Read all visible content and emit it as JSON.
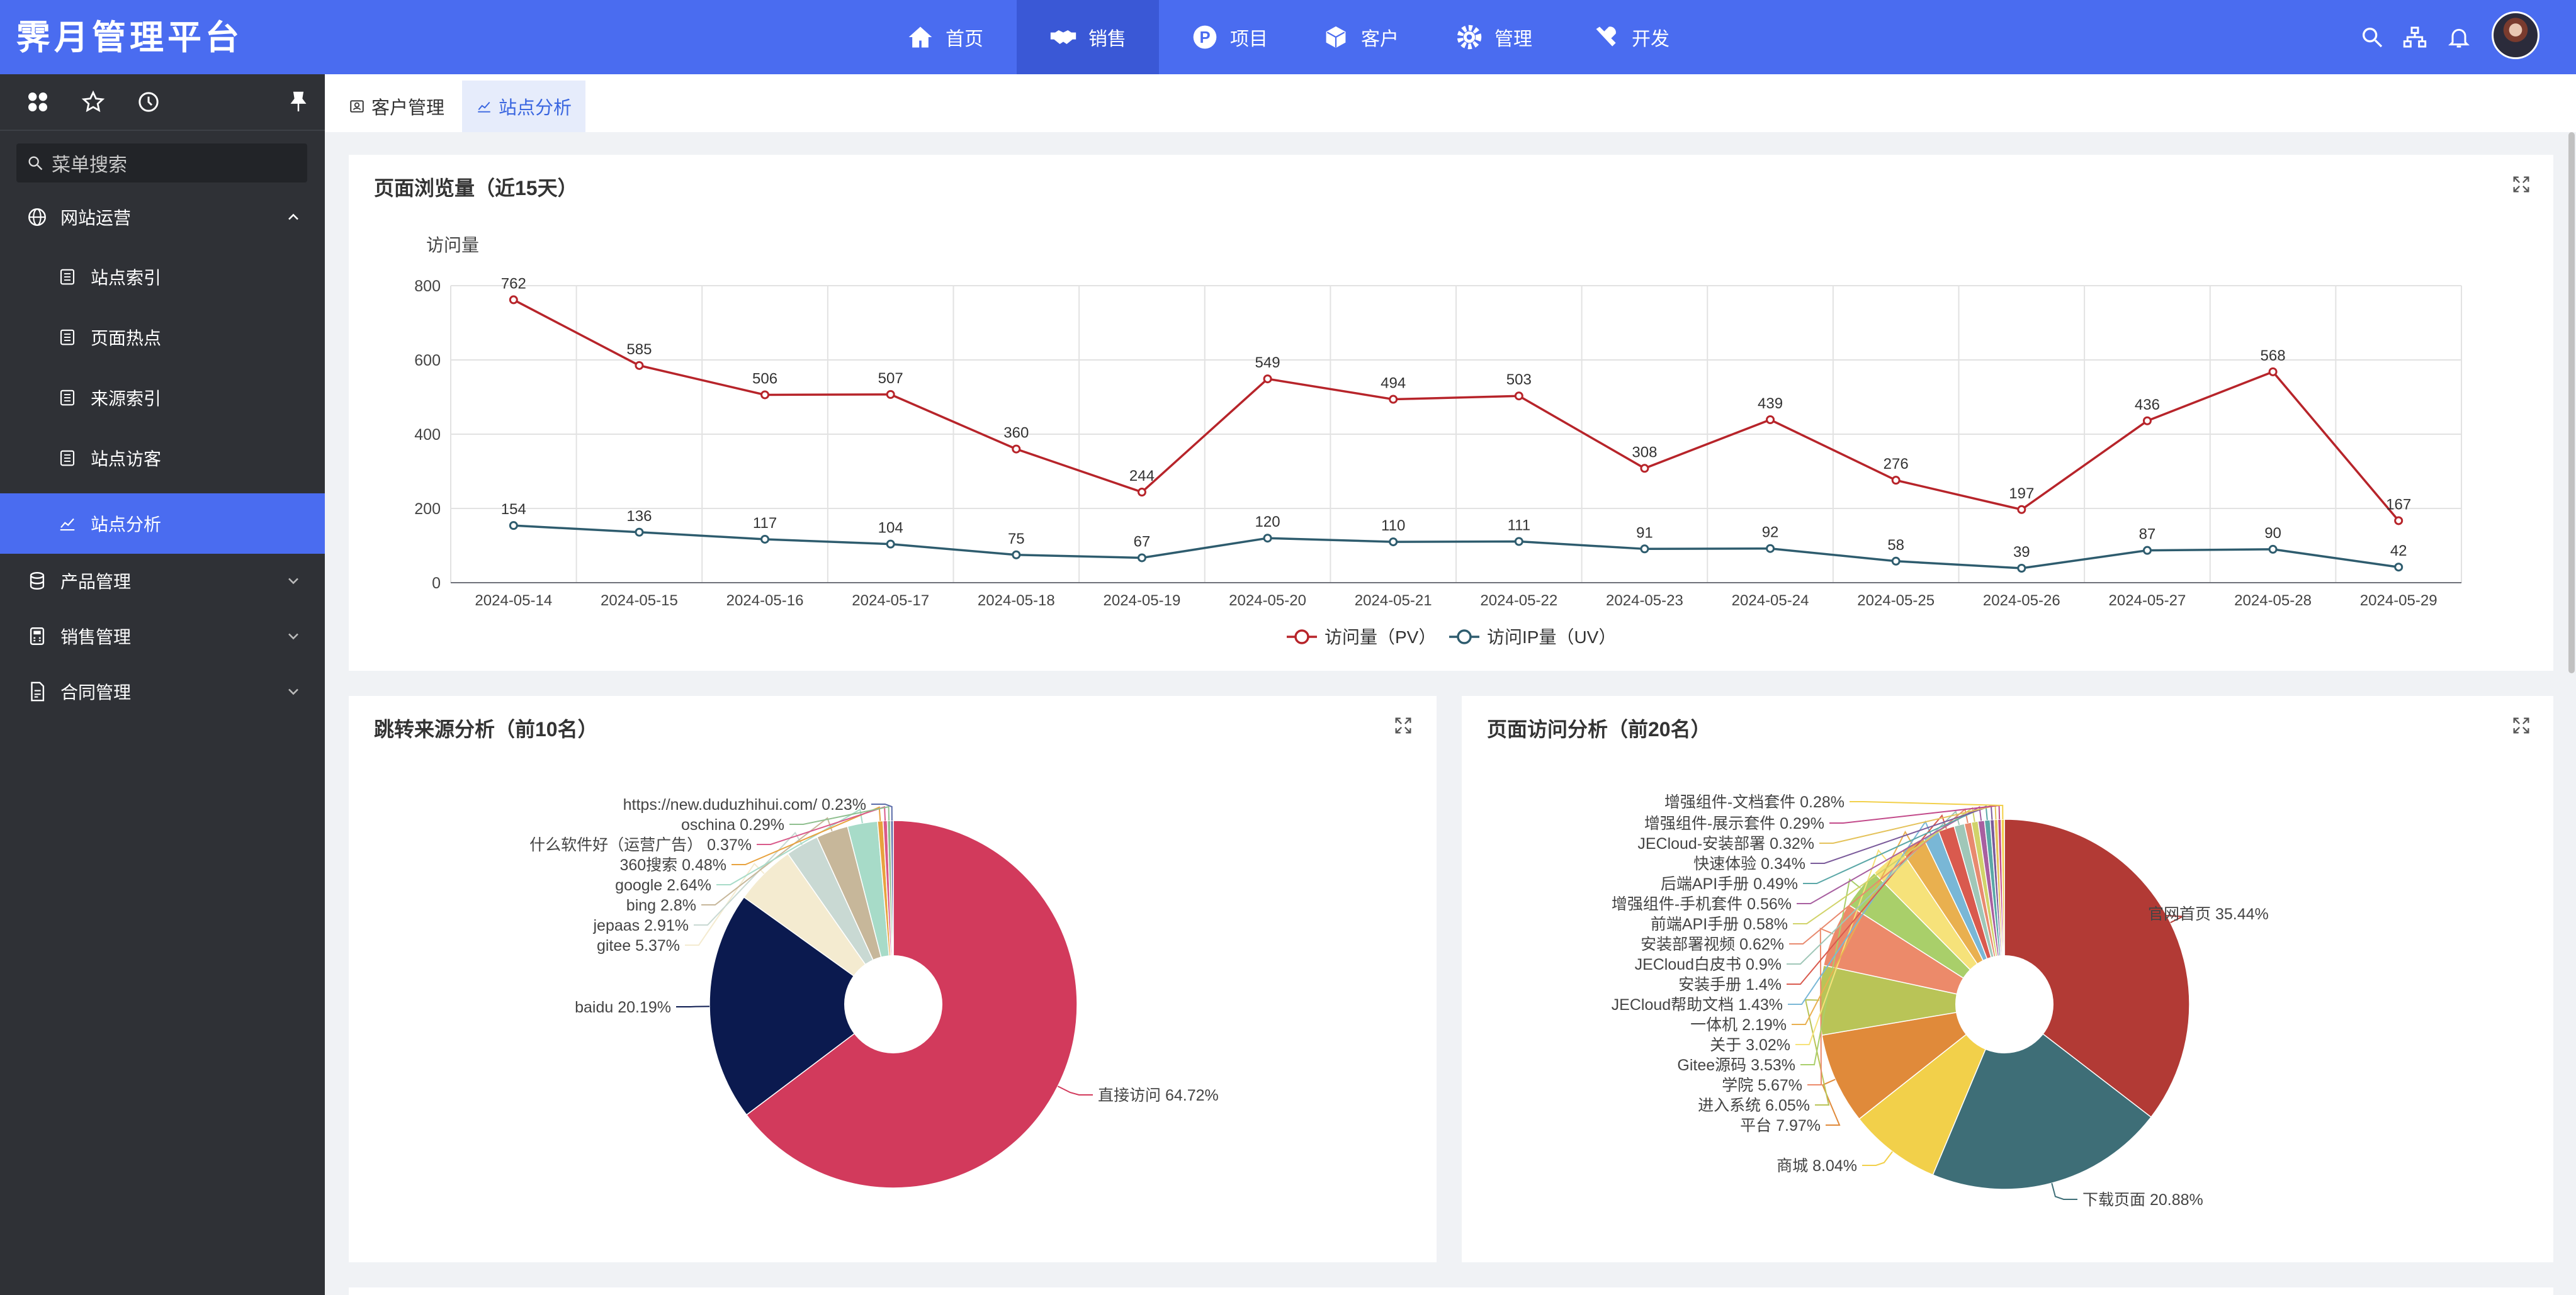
{
  "app": {
    "title": "霁月管理平台"
  },
  "topnav": [
    {
      "label": "首页",
      "icon": "home-icon"
    },
    {
      "label": "销售",
      "icon": "handshake-icon",
      "active": true
    },
    {
      "label": "项目",
      "icon": "project-p-icon"
    },
    {
      "label": "客户",
      "icon": "cube-icon"
    },
    {
      "label": "管理",
      "icon": "gear-icon"
    },
    {
      "label": "开发",
      "icon": "tools-icon"
    }
  ],
  "sidebar": {
    "search_placeholder": "菜单搜索",
    "groups": [
      {
        "label": "网站运营",
        "icon": "globe-icon",
        "expanded": true
      },
      {
        "label": "产品管理",
        "icon": "database-icon"
      },
      {
        "label": "销售管理",
        "icon": "calculator-icon"
      },
      {
        "label": "合同管理",
        "icon": "contract-icon"
      }
    ],
    "items": [
      {
        "label": "站点索引",
        "icon": "list-doc-icon"
      },
      {
        "label": "页面热点",
        "icon": "list-doc-icon"
      },
      {
        "label": "来源索引",
        "icon": "list-doc-icon"
      },
      {
        "label": "站点访客",
        "icon": "list-doc-icon"
      },
      {
        "label": "站点分析",
        "icon": "area-chart-icon",
        "active": true
      }
    ]
  },
  "tabs": [
    {
      "label": "客户管理",
      "icon": "user-card-icon"
    },
    {
      "label": "站点分析",
      "icon": "area-chart-icon",
      "active": true
    }
  ],
  "cards": {
    "pv": {
      "title": "页面浏览量（近15天）"
    },
    "referrer": {
      "title": "跳转来源分析（前10名）"
    },
    "pages": {
      "title": "页面访问分析（前20名）"
    }
  },
  "chart_data": [
    {
      "type": "line",
      "ylabel": "访问量",
      "ylim": [
        0,
        800
      ],
      "yticks": [
        0,
        200,
        400,
        600,
        800
      ],
      "grid": true,
      "legend_position": "bottom",
      "x": [
        "2024-05-14",
        "2024-05-15",
        "2024-05-16",
        "2024-05-17",
        "2024-05-18",
        "2024-05-19",
        "2024-05-20",
        "2024-05-21",
        "2024-05-22",
        "2024-05-23",
        "2024-05-24",
        "2024-05-25",
        "2024-05-26",
        "2024-05-27",
        "2024-05-28",
        "2024-05-29"
      ],
      "series": [
        {
          "name": "访问量（PV）",
          "color": "#b7242a",
          "values": [
            762,
            585,
            506,
            507,
            360,
            244,
            549,
            494,
            503,
            308,
            439,
            276,
            197,
            436,
            568,
            167
          ]
        },
        {
          "name": "访问IP量（UV）",
          "color": "#2e5c6e",
          "values": [
            154,
            136,
            117,
            104,
            75,
            67,
            120,
            110,
            111,
            91,
            92,
            58,
            39,
            87,
            90,
            42
          ]
        }
      ]
    },
    {
      "type": "pie",
      "donut": true,
      "slices": [
        {
          "label": "直接访问",
          "value": 64.72,
          "pct": "64.72%",
          "color": "#d23a5c"
        },
        {
          "label": "baidu",
          "value": 20.19,
          "pct": "20.19%",
          "color": "#0b1a4f"
        },
        {
          "label": "gitee",
          "value": 5.37,
          "pct": "5.37%",
          "color": "#f4ebd0"
        },
        {
          "label": "jepaas",
          "value": 2.91,
          "pct": "2.91%",
          "color": "#c9d9d3"
        },
        {
          "label": "bing",
          "value": 2.8,
          "pct": "2.8%",
          "color": "#c7b79a"
        },
        {
          "label": "google",
          "value": 2.64,
          "pct": "2.64%",
          "color": "#a7dbc8"
        },
        {
          "label": "360搜索",
          "value": 0.48,
          "pct": "0.48%",
          "color": "#e8a23e"
        },
        {
          "label": "什么软件好（运营广告）",
          "value": 0.37,
          "pct": "0.37%",
          "color": "#d95a8a"
        },
        {
          "label": "oschina",
          "value": 0.29,
          "pct": "0.29%",
          "color": "#8fbf8f"
        },
        {
          "label": "https://new.duduzhihui.com/",
          "value": 0.23,
          "pct": "0.23%",
          "color": "#5a6ba8"
        }
      ]
    },
    {
      "type": "pie",
      "donut": true,
      "slices": [
        {
          "label": "官网首页",
          "value": 35.44,
          "pct": "35.44%",
          "color": "#b23a35"
        },
        {
          "label": "下载页面",
          "value": 20.88,
          "pct": "20.88%",
          "color": "#3e6e77"
        },
        {
          "label": "商城",
          "value": 8.04,
          "pct": "8.04%",
          "color": "#f2d04a"
        },
        {
          "label": "平台",
          "value": 7.97,
          "pct": "7.97%",
          "color": "#e08a3a"
        },
        {
          "label": "进入系统",
          "value": 6.05,
          "pct": "6.05%",
          "color": "#b9c457"
        },
        {
          "label": "学院",
          "value": 5.67,
          "pct": "5.67%",
          "color": "#ec8a6a"
        },
        {
          "label": "Gitee源码 ",
          "value": 3.53,
          "pct": "3.53%",
          "color": "#a9cf6a"
        },
        {
          "label": "关于",
          "value": 3.02,
          "pct": "3.02%",
          "color": "#f6e27a"
        },
        {
          "label": "一体机",
          "value": 2.19,
          "pct": "2.19%",
          "color": "#e9b04f"
        },
        {
          "label": "JECloud帮助文档",
          "value": 1.43,
          "pct": "1.43%",
          "color": "#79b7d6"
        },
        {
          "label": "安装手册",
          "value": 1.4,
          "pct": "1.4%",
          "color": "#d95a4e"
        },
        {
          "label": "JECloud白皮书",
          "value": 0.9,
          "pct": "0.9%",
          "color": "#a0c7b8"
        },
        {
          "label": "安装部署视频",
          "value": 0.62,
          "pct": "0.62%",
          "color": "#e88a6f"
        },
        {
          "label": "前端API手册",
          "value": 0.58,
          "pct": "0.58%",
          "color": "#d1d36a"
        },
        {
          "label": "增强组件-手机套件",
          "value": 0.56,
          "pct": "0.56%",
          "color": "#a85fa0"
        },
        {
          "label": "后端API手册",
          "value": 0.49,
          "pct": "0.49%",
          "color": "#5aa7a7"
        },
        {
          "label": "快速体验",
          "value": 0.34,
          "pct": "0.34%",
          "color": "#7a5a9a"
        },
        {
          "label": "JECloud-安装部署",
          "value": 0.32,
          "pct": "0.32%",
          "color": "#e4c25a"
        },
        {
          "label": "增强组件-展示套件",
          "value": 0.29,
          "pct": "0.29%",
          "color": "#c24a8a"
        },
        {
          "label": "增强组件-文档套件",
          "value": 0.28,
          "pct": "0.28%",
          "color": "#f2d04a"
        }
      ]
    }
  ]
}
